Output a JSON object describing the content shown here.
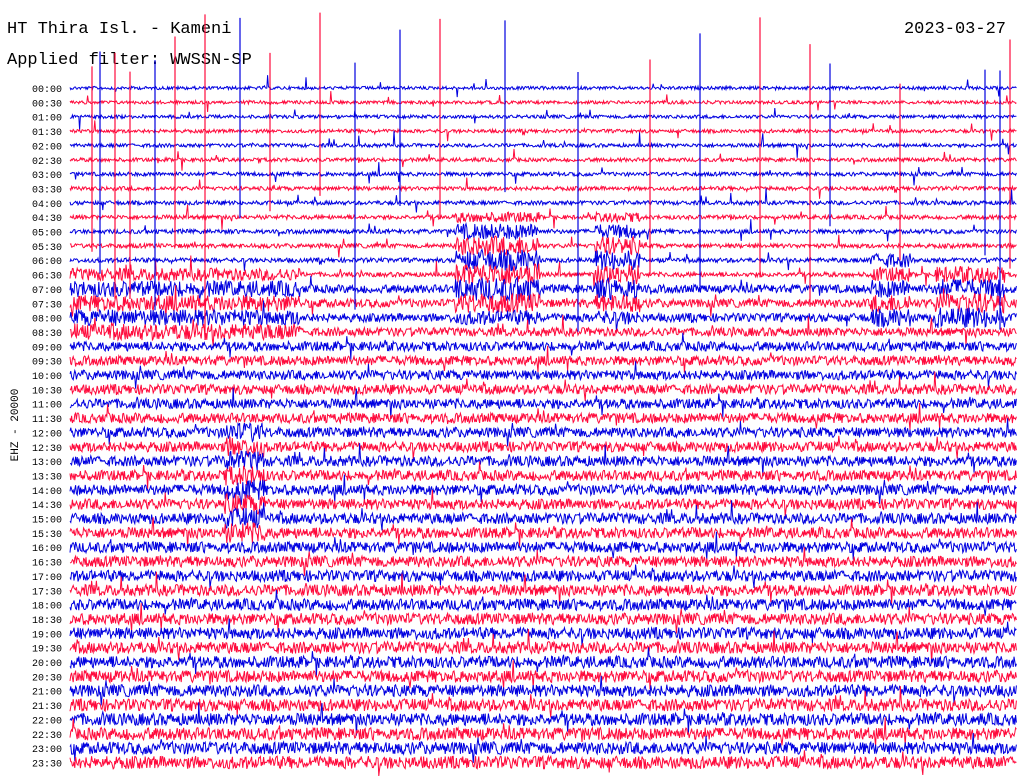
{
  "header": {
    "title": "HT Thira Isl. - Kameni",
    "date": "2023-03-27",
    "filter": "Applied filter: WWSSN-SP"
  },
  "chart_data": {
    "type": "helicorder",
    "channel_label": "EHZ - 20000",
    "trace_colors": [
      "#0000e0",
      "#ff0a3c"
    ],
    "rows": [
      "00:00",
      "00:30",
      "01:00",
      "01:30",
      "02:00",
      "02:30",
      "03:00",
      "03:30",
      "04:00",
      "04:30",
      "05:00",
      "05:30",
      "06:00",
      "06:30",
      "07:00",
      "07:30",
      "08:00",
      "08:30",
      "09:00",
      "09:30",
      "10:00",
      "10:30",
      "11:00",
      "11:30",
      "12:00",
      "12:30",
      "13:00",
      "13:30",
      "14:00",
      "14:30",
      "15:00",
      "15:30",
      "16:00",
      "16:30",
      "17:00",
      "17:30",
      "18:00",
      "18:30",
      "19:00",
      "19:30",
      "20:00",
      "20:30",
      "21:00",
      "21:30",
      "22:00",
      "22:30",
      "23:00",
      "23:30"
    ],
    "grid": false,
    "legend": "none"
  }
}
